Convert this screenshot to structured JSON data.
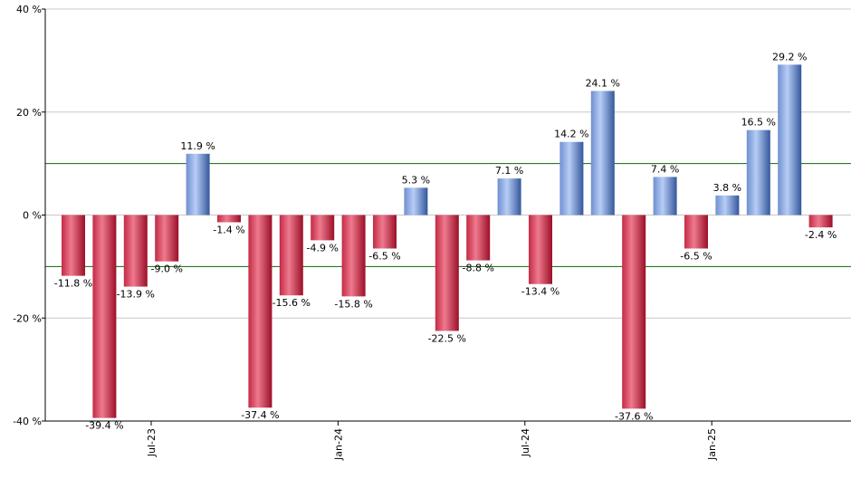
{
  "chart_data": {
    "type": "bar",
    "title": "",
    "xlabel": "",
    "ylabel": "",
    "ylim": [
      -40,
      40
    ],
    "y_ticks": [
      40,
      20,
      0,
      -20,
      -40
    ],
    "y_tick_suffix": " %",
    "x_ticks": [
      {
        "label": "Jul-23",
        "after_bar": 2
      },
      {
        "label": "Jan-24",
        "after_bar": 8
      },
      {
        "label": "Jul-24",
        "after_bar": 14
      },
      {
        "label": "Jan-25",
        "after_bar": 20
      }
    ],
    "values": [
      -11.8,
      -39.4,
      -13.9,
      -9.0,
      11.9,
      -1.4,
      -37.4,
      -15.6,
      -4.9,
      -15.8,
      -6.5,
      5.3,
      -22.5,
      -8.8,
      7.1,
      -13.4,
      14.2,
      24.1,
      -37.6,
      7.4,
      -6.5,
      3.8,
      16.5,
      29.2,
      -2.4
    ],
    "labels": [
      "-11.8 %",
      "-39.4 %",
      "-13.9 %",
      "-9.0 %",
      "11.9 %",
      "-1.4 %",
      "-37.4 %",
      "-15.6 %",
      "-4.9 %",
      "-15.8 %",
      "-6.5 %",
      "5.3 %",
      "-22.5 %",
      "-8.8 %",
      "7.1 %",
      "-13.4 %",
      "14.2 %",
      "24.1 %",
      "-37.6 %",
      "7.4 %",
      "-6.5 %",
      "3.8 %",
      "16.5 %",
      "29.2 %",
      "-2.4 %"
    ],
    "reference_lines": [
      10,
      -10
    ],
    "colors": {
      "positive_light": "#b7cdf6",
      "positive_dark": "#3d5fa6",
      "negative_light": "#ee7a8e",
      "negative_dark": "#a3122c",
      "reference_line": "#0a6a0a",
      "grid": "#c8c8c8",
      "axis": "#000000"
    }
  }
}
